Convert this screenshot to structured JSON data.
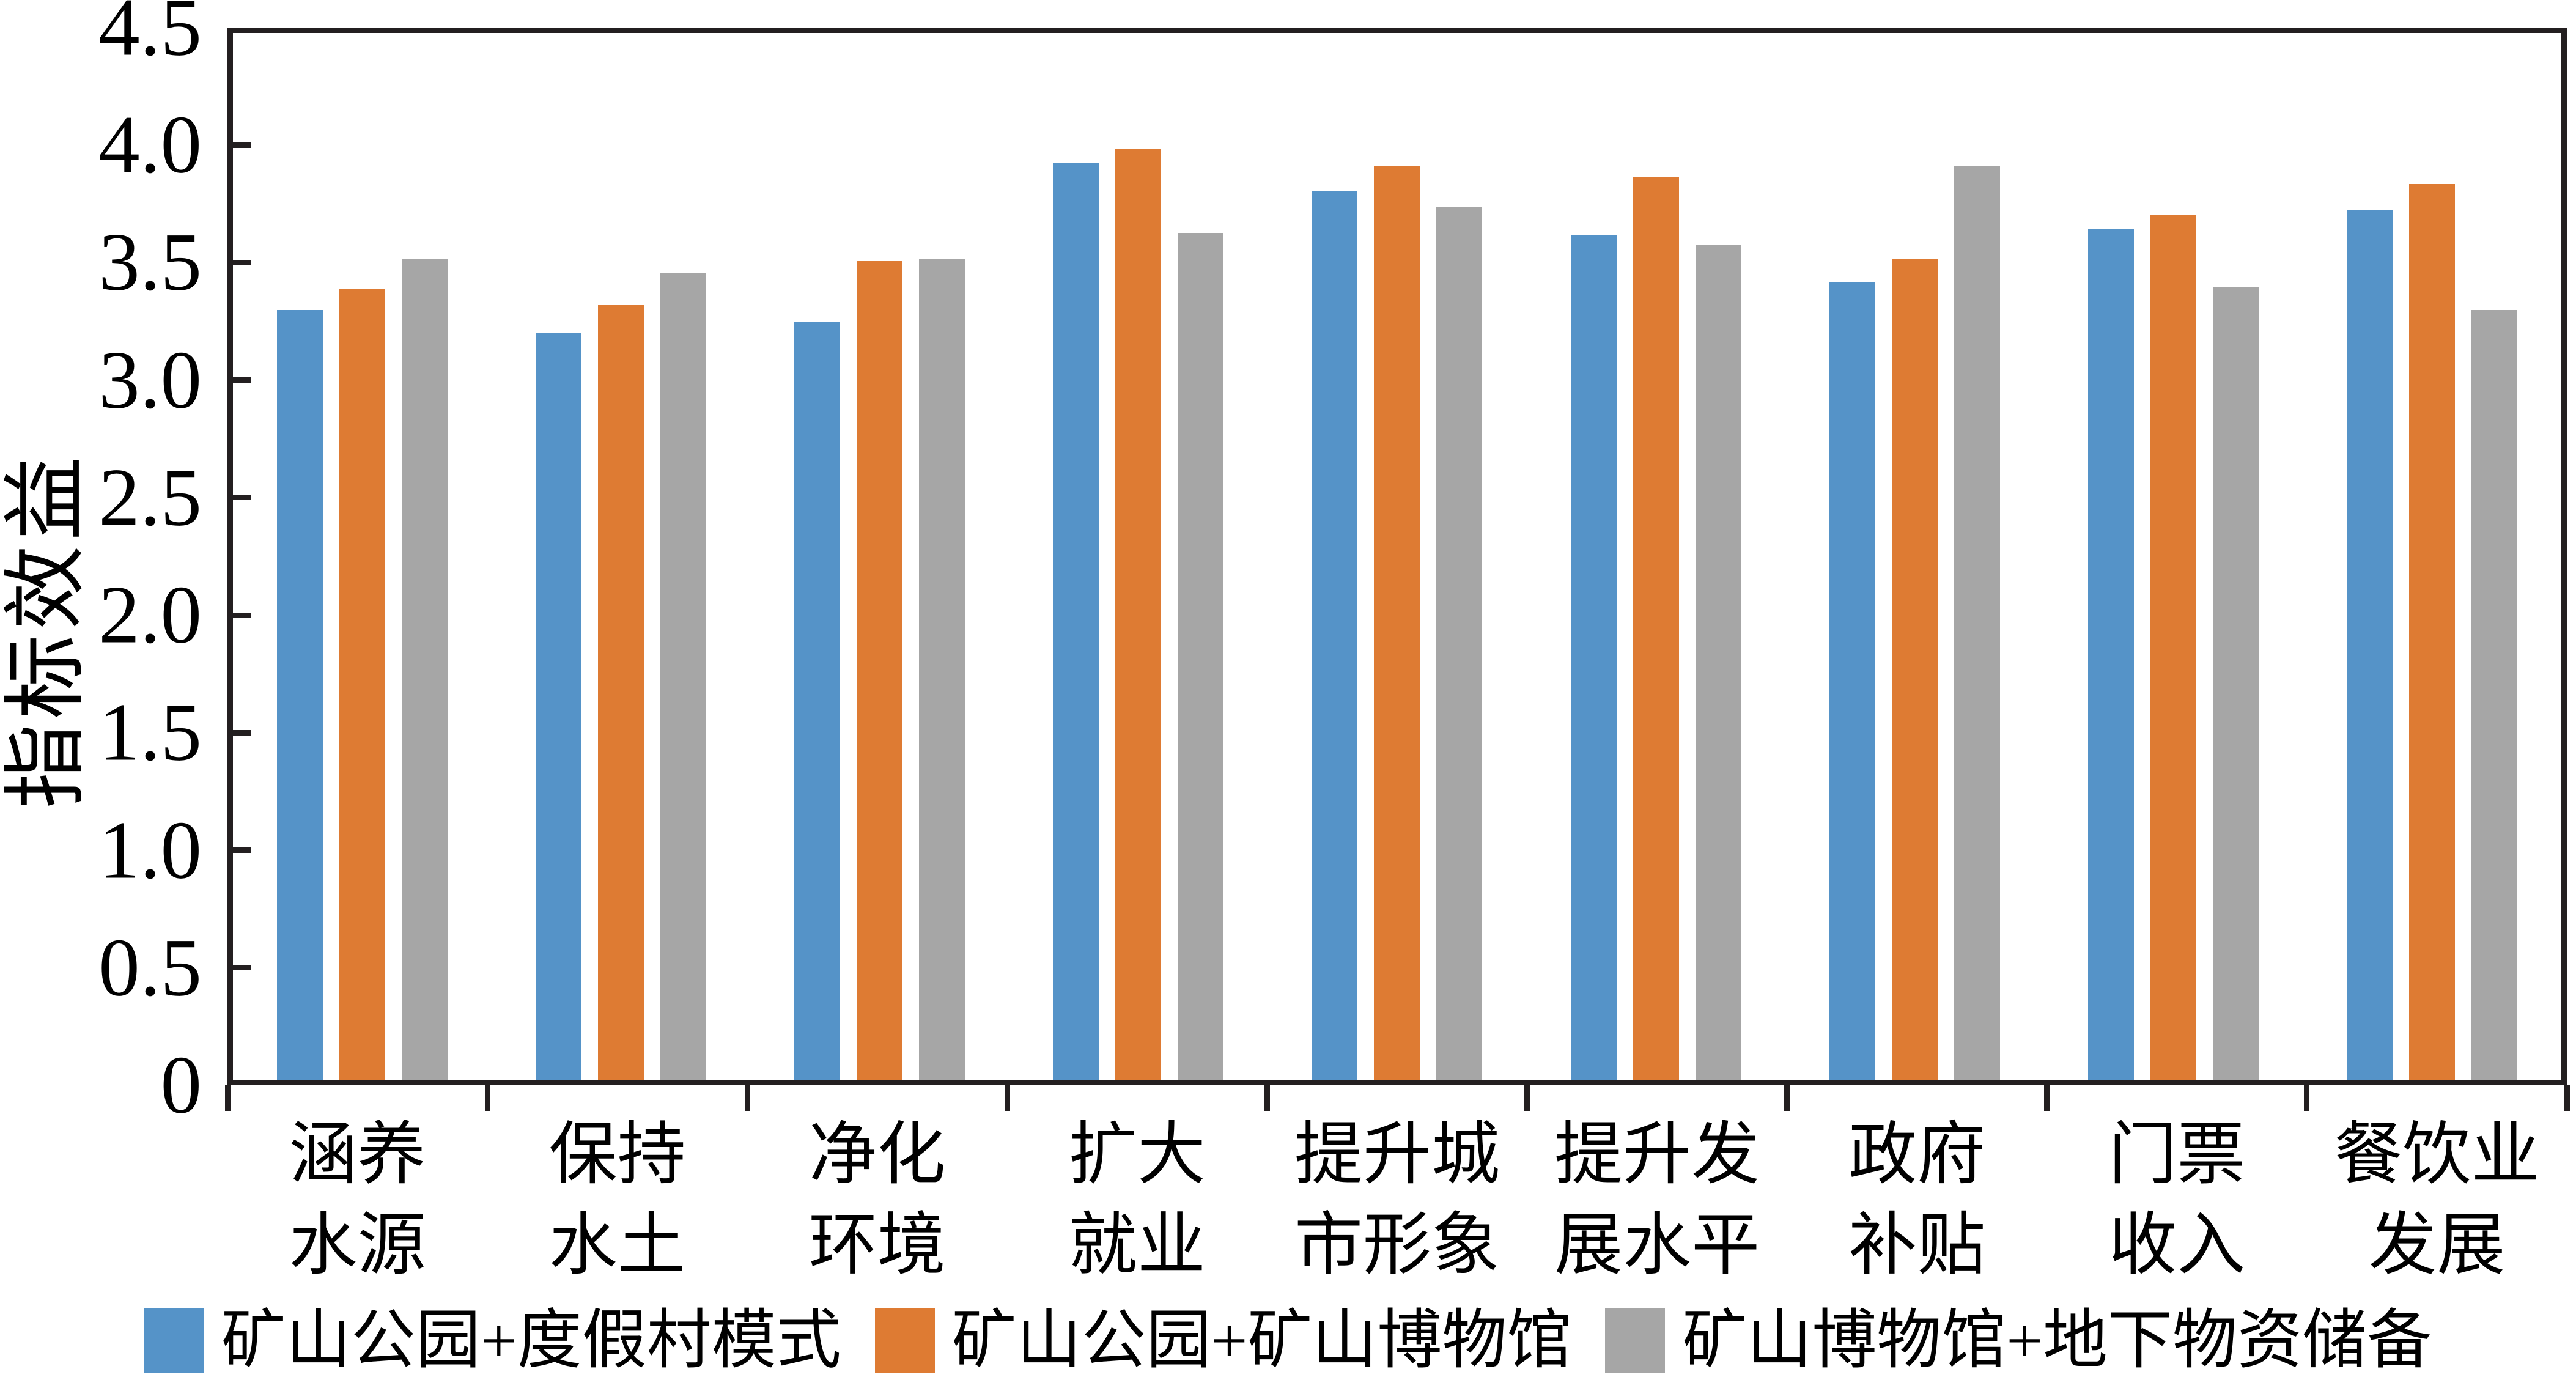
{
  "chart_data": {
    "type": "bar",
    "title": "",
    "xlabel": "",
    "ylabel": "指标效益",
    "ylim": [
      0,
      4.5
    ],
    "grid": false,
    "legend_position": "bottom",
    "yticks": [
      {
        "value": 4.5,
        "label": "4.5"
      },
      {
        "value": 4.0,
        "label": "4.0"
      },
      {
        "value": 3.5,
        "label": "3.5"
      },
      {
        "value": 3.0,
        "label": "3.0"
      },
      {
        "value": 2.5,
        "label": "2.5"
      },
      {
        "value": 2.0,
        "label": "2.0"
      },
      {
        "value": 1.5,
        "label": "1.5"
      },
      {
        "value": 1.0,
        "label": "1.0"
      },
      {
        "value": 0.5,
        "label": "0.5"
      },
      {
        "value": 0.0,
        "label": "0"
      }
    ],
    "categories": [
      "涵养\n水源",
      "保持\n水土",
      "净化\n环境",
      "扩大\n就业",
      "提升城\n市形象",
      "提升发\n展水平",
      "政府\n补贴",
      "门票\n收入",
      "餐饮业\n发展"
    ],
    "series": [
      {
        "name": "矿山公园+度假村模式",
        "color": "#5593C8",
        "values": [
          3.31,
          3.21,
          3.26,
          3.94,
          3.82,
          3.63,
          3.43,
          3.66,
          3.74
        ]
      },
      {
        "name": "矿山公园+矿山博物馆",
        "color": "#DE7B33",
        "values": [
          3.4,
          3.33,
          3.52,
          4.0,
          3.93,
          3.88,
          3.53,
          3.72,
          3.85
        ]
      },
      {
        "name": "矿山博物馆+地下物资储备",
        "color": "#A6A6A6",
        "values": [
          3.53,
          3.47,
          3.53,
          3.64,
          3.75,
          3.59,
          3.93,
          3.41,
          3.31
        ]
      }
    ],
    "axis_color": "#231F20",
    "text_color": "#000000"
  }
}
